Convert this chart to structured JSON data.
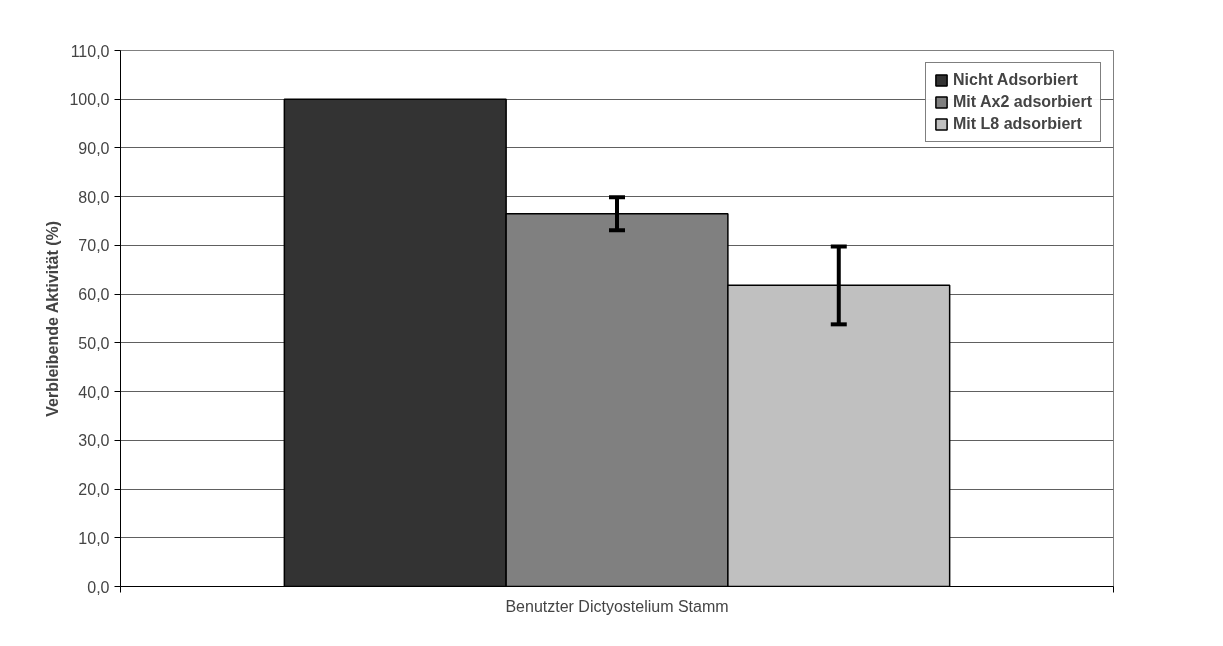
{
  "chart_data": {
    "type": "bar",
    "ylabel": "Verbleibende Aktivität (%)",
    "xlabel": "Benutzter Dictyostelium Stamm",
    "categories": [
      null
    ],
    "series": [
      {
        "name": "Nicht Adsorbiert",
        "color": "#333333",
        "values": [
          100.0
        ]
      },
      {
        "name": "Mit Ax2 adsorbiert",
        "color": "#808080",
        "values": [
          76.5
        ],
        "errors": [
          3.4
        ]
      },
      {
        "name": "Mit L8 adsorbiert",
        "color": "#c0c0c0",
        "values": [
          61.8
        ],
        "errors": [
          8.0
        ]
      }
    ],
    "ylim": [
      0,
      110
    ],
    "yticks": [
      {
        "value": 0,
        "label": "0,0"
      },
      {
        "value": 10,
        "label": "10,0"
      },
      {
        "value": 20,
        "label": "20,0"
      },
      {
        "value": 30,
        "label": "30,0"
      },
      {
        "value": 40,
        "label": "40,0"
      },
      {
        "value": 50,
        "label": "50,0"
      },
      {
        "value": 60,
        "label": "60,0"
      },
      {
        "value": 70,
        "label": "70,0"
      },
      {
        "value": 80,
        "label": "80,0"
      },
      {
        "value": 90,
        "label": "90,0"
      },
      {
        "value": 100,
        "label": "100,0"
      },
      {
        "value": 110,
        "label": "110,0"
      }
    ],
    "grid": "y",
    "legend": "top right"
  }
}
